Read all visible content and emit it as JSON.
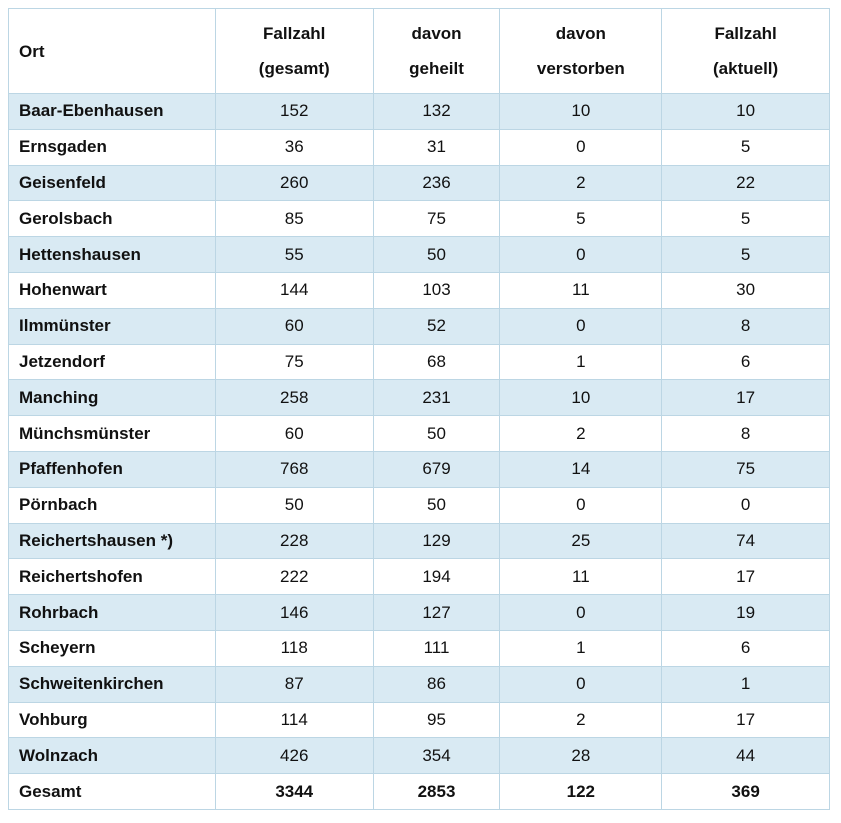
{
  "table": {
    "header": [
      [
        "Ort"
      ],
      [
        "Fallzahl",
        "(gesamt)"
      ],
      [
        "davon",
        "geheilt"
      ],
      [
        "davon",
        "verstorben"
      ],
      [
        "Fallzahl",
        "(aktuell)"
      ]
    ],
    "rows": [
      [
        "Baar-Ebenhausen",
        152,
        132,
        10,
        10
      ],
      [
        "Ernsgaden",
        36,
        31,
        0,
        5
      ],
      [
        "Geisenfeld",
        260,
        236,
        2,
        22
      ],
      [
        "Gerolsbach",
        85,
        75,
        5,
        5
      ],
      [
        "Hettenshausen",
        55,
        50,
        0,
        5
      ],
      [
        "Hohenwart",
        144,
        103,
        11,
        30
      ],
      [
        "Ilmmünster",
        60,
        52,
        0,
        8
      ],
      [
        "Jetzendorf",
        75,
        68,
        1,
        6
      ],
      [
        "Manching",
        258,
        231,
        10,
        17
      ],
      [
        "Münchsmünster",
        60,
        50,
        2,
        8
      ],
      [
        "Pfaffenhofen",
        768,
        679,
        14,
        75
      ],
      [
        "Pörnbach",
        50,
        50,
        0,
        0
      ],
      [
        "Reichertshausen *)",
        228,
        129,
        25,
        74
      ],
      [
        "Reichertshofen",
        222,
        194,
        11,
        17
      ],
      [
        "Rohrbach",
        146,
        127,
        0,
        19
      ],
      [
        "Scheyern",
        118,
        111,
        1,
        6
      ],
      [
        "Schweitenkirchen",
        87,
        86,
        0,
        1
      ],
      [
        "Vohburg",
        114,
        95,
        2,
        17
      ],
      [
        "Wolnzach",
        426,
        354,
        28,
        44
      ]
    ],
    "total": [
      "Gesamt",
      3344,
      2853,
      122,
      369
    ]
  }
}
